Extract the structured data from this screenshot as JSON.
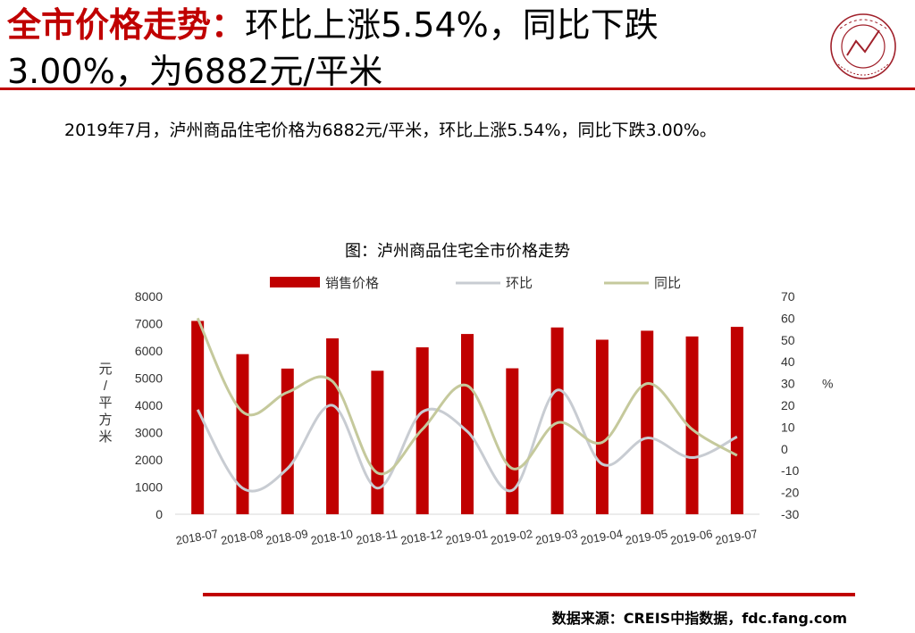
{
  "title": {
    "highlight": "全市价格走势：",
    "rest": "环比上涨5.54%，同比下跌3.00%，为6882元/平米"
  },
  "description": "2019年7月，泸州商品住宅价格为6882元/平米，环比上涨5.54%，同比下跌3.00%。",
  "logo": {
    "icon": "china-index-academy-seal-icon",
    "color": "#a0202a"
  },
  "source": "数据来源：CREIS中指数据，fdc.fang.com",
  "colors": {
    "accent": "#c00000",
    "bar": "#c00000",
    "mom": "#c8ccd2",
    "yoy": "#c5c99c"
  },
  "chart_data": {
    "type": "bar",
    "title": "图：泸州商品住宅全市价格走势",
    "categories": [
      "2018-07",
      "2018-08",
      "2018-09",
      "2018-10",
      "2018-11",
      "2018-12",
      "2019-01",
      "2019-02",
      "2019-03",
      "2019-04",
      "2019-05",
      "2019-06",
      "2019-07"
    ],
    "ylabel_left": "元/平方米",
    "ylabel_right": "%",
    "ylim_left": [
      0,
      8000
    ],
    "ylim_right": [
      -30,
      70
    ],
    "yticks_left": [
      "0",
      "1000",
      "2000",
      "3000",
      "4000",
      "5000",
      "6000",
      "7000",
      "8000"
    ],
    "yticks_right": [
      "-30",
      "-20",
      "-10",
      "0",
      "10",
      "20",
      "30",
      "40",
      "50",
      "60",
      "70"
    ],
    "legend_position": "top",
    "series": [
      {
        "name": "销售价格",
        "type": "bar",
        "axis": "left",
        "values": [
          7100,
          5880,
          5350,
          6460,
          5270,
          6130,
          6620,
          5360,
          6860,
          6410,
          6740,
          6530,
          6882
        ]
      },
      {
        "name": "环比",
        "type": "line",
        "axis": "right",
        "values": [
          18,
          -18,
          -9,
          20,
          -18,
          17,
          8,
          -19,
          27,
          -7,
          5,
          -4,
          5.54
        ]
      },
      {
        "name": "同比",
        "type": "line",
        "axis": "right",
        "values": [
          60,
          17,
          26,
          31,
          -11,
          9,
          29,
          -9,
          12,
          3,
          30,
          9,
          -3.0
        ]
      }
    ]
  }
}
